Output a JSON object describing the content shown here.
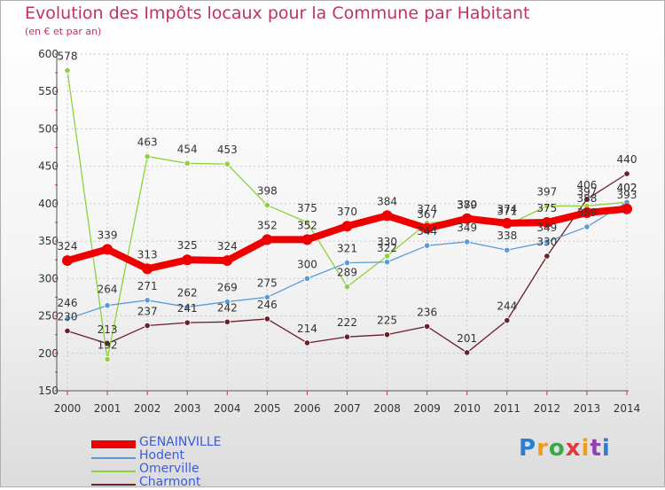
{
  "title": "Evolution des Impôts locaux pour la Commune par Habitant",
  "subtitle": "(en € et par an)",
  "brand": "Proxiti",
  "chart_data": {
    "type": "line",
    "x": [
      "2000",
      "2001",
      "2002",
      "2003",
      "2004",
      "2005",
      "2006",
      "2007",
      "2008",
      "2009",
      "2010",
      "2011",
      "2012",
      "2013",
      "2014"
    ],
    "ylim": [
      150,
      600
    ],
    "yticks": [
      150,
      200,
      250,
      300,
      350,
      400,
      450,
      500,
      550,
      600
    ],
    "grid": true,
    "legend_position": "bottom-left",
    "series": [
      {
        "name": "GENAINVILLE",
        "color": "#ee0000",
        "values": [
          324,
          339,
          313,
          325,
          324,
          352,
          352,
          370,
          384,
          367,
          380,
          374,
          375,
          388,
          393
        ]
      },
      {
        "name": "Hodent",
        "color": "#5b9bd5",
        "values": [
          246,
          264,
          271,
          262,
          269,
          275,
          300,
          321,
          322,
          344,
          349,
          338,
          349,
          369,
          402
        ]
      },
      {
        "name": "Omerville",
        "color": "#8ed13c",
        "values": [
          578,
          192,
          463,
          454,
          453,
          398,
          375,
          289,
          330,
          374,
          379,
          371,
          397,
          397,
          402
        ]
      },
      {
        "name": "Charmont",
        "color": "#6b1f2a",
        "values": [
          230,
          213,
          237,
          241,
          242,
          246,
          214,
          222,
          225,
          236,
          201,
          244,
          330,
          406,
          440
        ]
      }
    ]
  }
}
